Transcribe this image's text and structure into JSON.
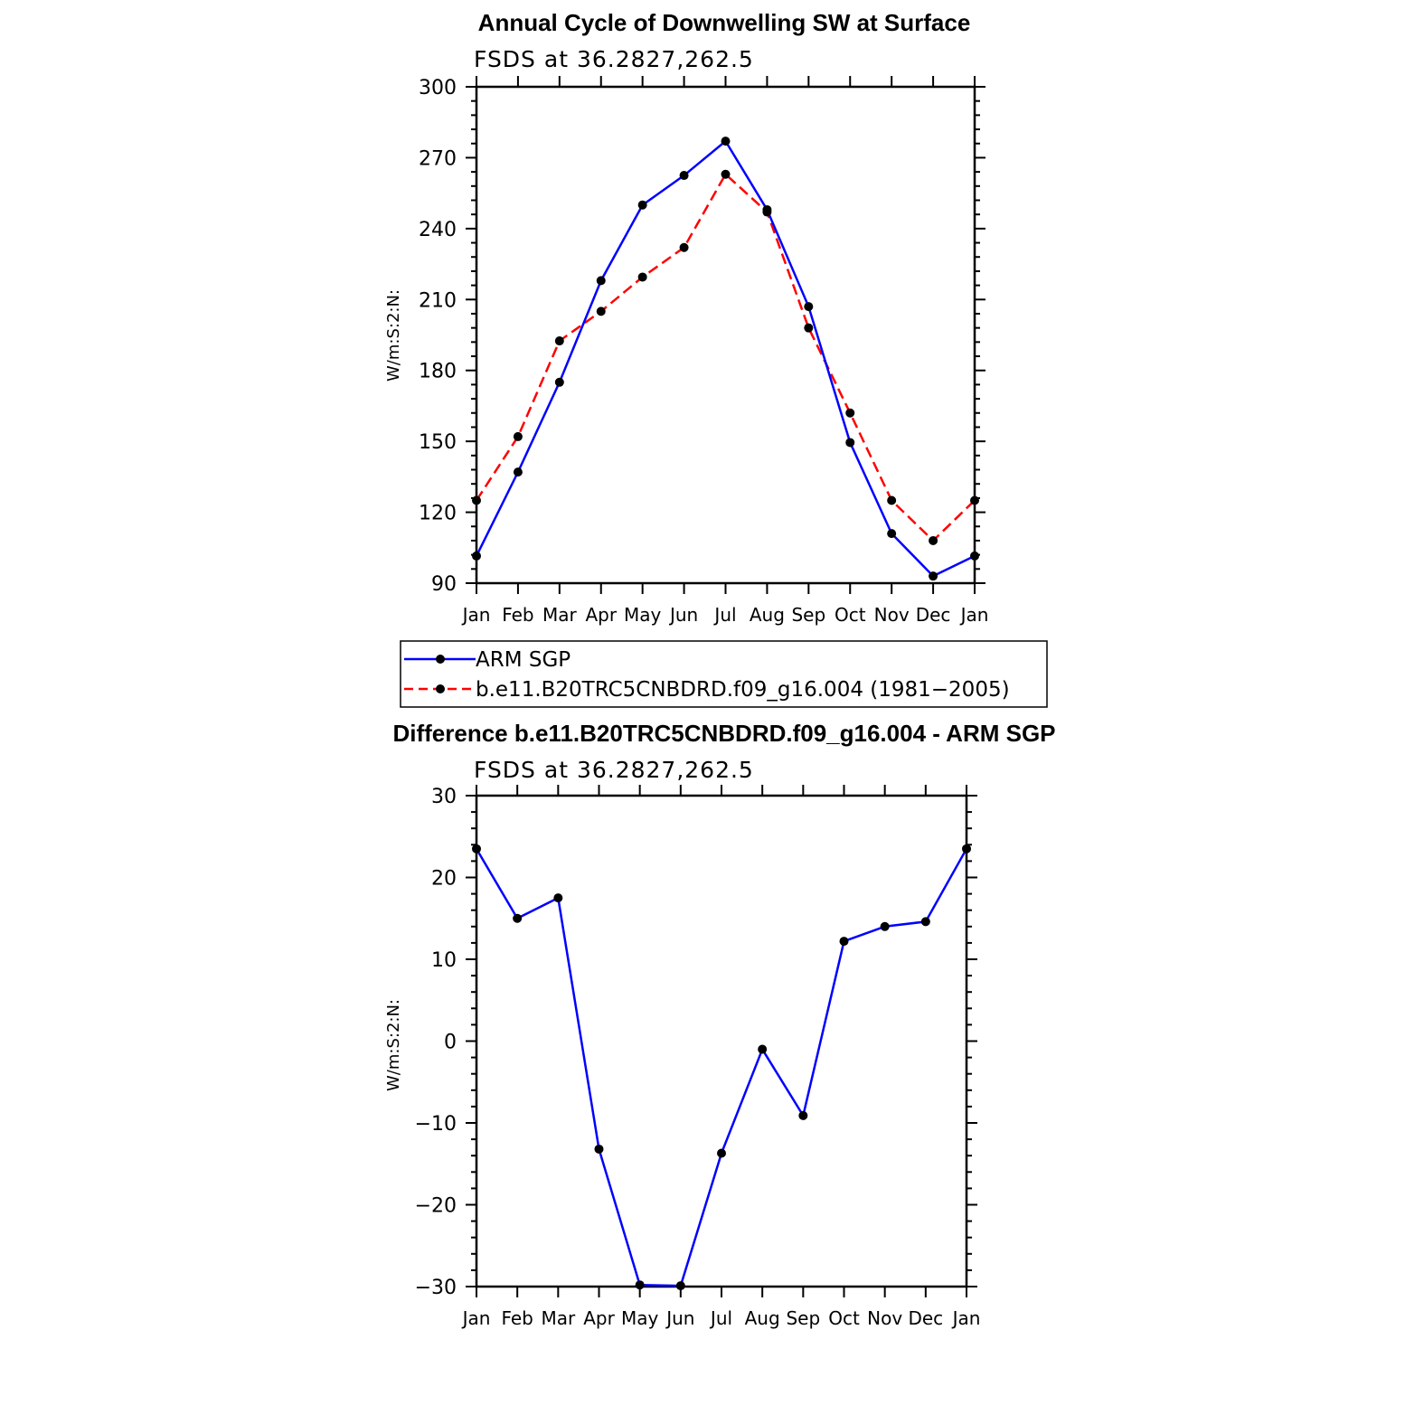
{
  "chart_data": [
    {
      "type": "line",
      "title": "Annual Cycle of Downwelling SW at Surface",
      "subtitle": "FSDS at 36.2827,262.5",
      "xlabel": "",
      "ylabel": "W/m:S:2:N:",
      "categories": [
        "Jan",
        "Feb",
        "Mar",
        "Apr",
        "May",
        "Jun",
        "Jul",
        "Aug",
        "Sep",
        "Oct",
        "Nov",
        "Dec",
        "Jan"
      ],
      "yticks": [
        90,
        120,
        150,
        180,
        210,
        240,
        270,
        300
      ],
      "ylim": [
        90,
        300
      ],
      "grid": false,
      "legend_placement": "below",
      "series": [
        {
          "name": "ARM SGP",
          "color": "#0000ff",
          "dash": "solid",
          "values": [
            101.5,
            137,
            175,
            218,
            250,
            262.5,
            277,
            248,
            207,
            149.5,
            111,
            93,
            101.5
          ]
        },
        {
          "name": "b.e11.B20TRC5CNBDRD.f09_g16.004 (1981−2005)",
          "color": "#ff0000",
          "dash": "dashed",
          "values": [
            125,
            152,
            192.5,
            205,
            219.5,
            232,
            263,
            247,
            198,
            162,
            125,
            108,
            125
          ]
        }
      ]
    },
    {
      "type": "line",
      "title": "Difference b.e11.B20TRC5CNBDRD.f09_g16.004 - ARM SGP",
      "subtitle": "FSDS at 36.2827,262.5",
      "xlabel": "",
      "ylabel": "W/m:S:2:N:",
      "categories": [
        "Jan",
        "Feb",
        "Mar",
        "Apr",
        "May",
        "Jun",
        "Jul",
        "Aug",
        "Sep",
        "Oct",
        "Nov",
        "Dec",
        "Jan"
      ],
      "yticks": [
        -30,
        -20,
        -10,
        0,
        10,
        20,
        30
      ],
      "ytick_labels": [
        "−30",
        "−20",
        "−10",
        "0",
        "10",
        "20",
        "30"
      ],
      "ylim": [
        -30,
        30
      ],
      "grid": false,
      "series": [
        {
          "color": "#0000ff",
          "dash": "solid",
          "values": [
            23.5,
            15,
            17.5,
            -13.2,
            -29.8,
            -29.9,
            -13.7,
            -1,
            -9.1,
            12.2,
            14,
            14.6,
            23.5
          ]
        }
      ]
    }
  ]
}
